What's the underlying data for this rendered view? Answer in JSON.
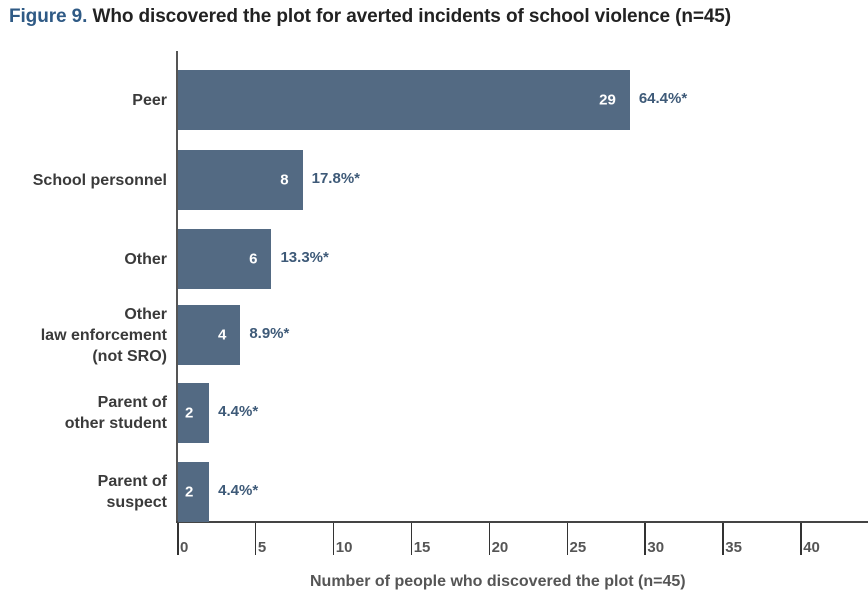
{
  "title": {
    "figure_label": "Figure 9.",
    "text": "Who discovered the plot for averted incidents of school violence (n=45)"
  },
  "colors": {
    "bar": "#536a83",
    "figure_label": "#2f5a85",
    "percent_label": "#3e5a78"
  },
  "chart_data": {
    "type": "bar",
    "orientation": "horizontal",
    "title": "Figure 9. Who discovered the plot for averted incidents of school violence (n=45)",
    "xlabel": "Number of people who discovered the plot (n=45)",
    "ylabel": "",
    "categories": [
      "Peer",
      "School personnel",
      "Other",
      "Other law enforcement (not SRO)",
      "Parent of other student",
      "Parent of suspect"
    ],
    "category_lines": [
      [
        "Peer"
      ],
      [
        "School personnel"
      ],
      [
        "Other"
      ],
      [
        "Other",
        "law enforcement",
        "(not SRO)"
      ],
      [
        "Parent of",
        "other student"
      ],
      [
        "Parent of",
        "suspect"
      ]
    ],
    "values": [
      29,
      8,
      6,
      4,
      2,
      2
    ],
    "value_labels": [
      "29",
      "8",
      "6",
      "4",
      "2",
      "2"
    ],
    "percent_labels": [
      "64.4%*",
      "17.8%*",
      "13.3%*",
      "8.9%*",
      "4.4%*",
      "4.4%*"
    ],
    "percents": [
      64.4,
      17.8,
      13.3,
      8.9,
      4.4,
      4.4
    ],
    "xlim": [
      0,
      44
    ],
    "xticks": [
      0,
      5,
      10,
      15,
      20,
      25,
      30,
      35,
      40
    ],
    "xtick_labels": [
      "0",
      "5",
      "10",
      "15",
      "20",
      "25",
      "30",
      "35",
      "40"
    ],
    "grid": false,
    "legend": null
  }
}
